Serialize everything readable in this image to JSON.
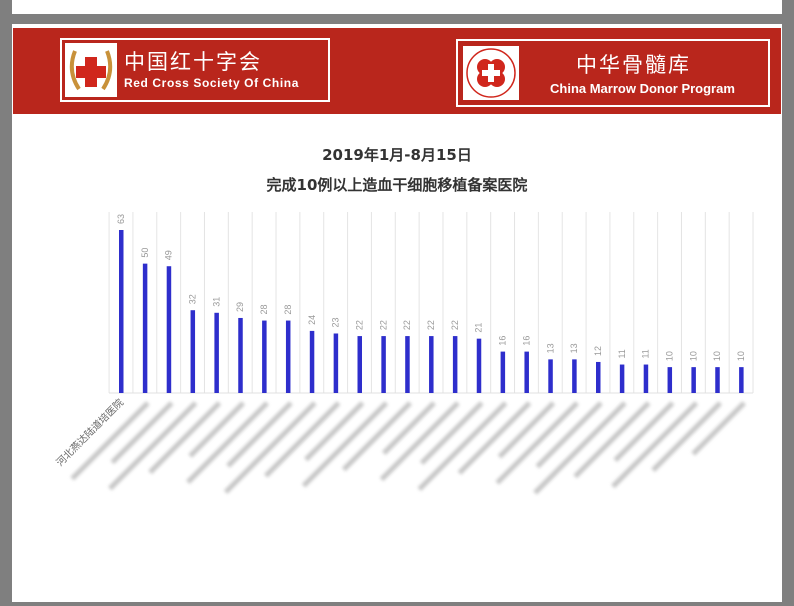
{
  "header": {
    "org1_cn": "中国红十字会",
    "org1_en": "Red Cross Society Of China",
    "org2_cn": "中华骨髓库",
    "org2_en": "China Marrow Donor Program",
    "brand_color": "#b9261c"
  },
  "chart_data": {
    "type": "bar",
    "title": "2019年1月-8月15日",
    "subtitle": "完成10例以上造血干细胞移植备案医院",
    "categories": [
      "河北燕达陆道培医院",
      "",
      "",
      "",
      "",
      "",
      "",
      "",
      "",
      "",
      "",
      "",
      "",
      "",
      "",
      "",
      "",
      "",
      "",
      "",
      "",
      "",
      "",
      "",
      "",
      "",
      ""
    ],
    "values": [
      63,
      50,
      49,
      32,
      31,
      29,
      28,
      28,
      24,
      23,
      22,
      22,
      22,
      22,
      22,
      21,
      16,
      16,
      13,
      13,
      12,
      11,
      11,
      10,
      10,
      10,
      10
    ],
    "ylim": [
      0,
      65
    ],
    "grid": "vertical",
    "bar_color": "#2e2ecc",
    "data_labels": true,
    "label_rotation": -45
  }
}
